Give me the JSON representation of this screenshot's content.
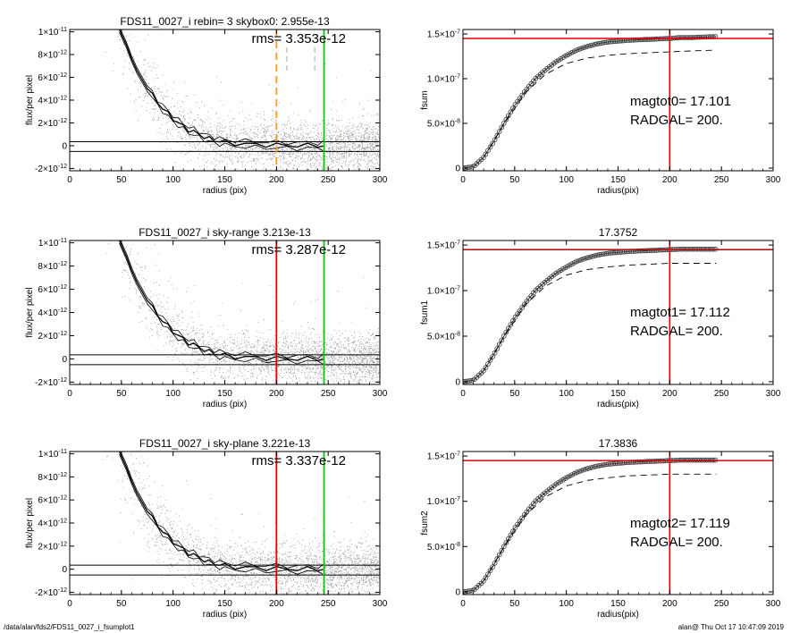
{
  "footer": {
    "path": "/data/alan/fds2/FDS11_0027_i_fsumplot1",
    "stamp": "alan@  Thu Oct 17 10:47:09 2019"
  },
  "colors": {
    "points": "#9a9a9a",
    "profile": "#000000",
    "sky_band": "#000000",
    "marker_orange": "#ff9922",
    "marker_red": "#dd0000",
    "marker_green": "#00cc00",
    "growth_circles": "#333333",
    "guide_red": "#dd0000"
  },
  "chart_data": [
    {
      "type": "scatter",
      "panel": "top-left",
      "title": "FDS11_0027_i rebin= 3    skybox0:  2.955e-13",
      "annotation": "rms= 3.353e-12",
      "xlabel": "radius (pix)",
      "ylabel": "flux/per pixel",
      "xlim": [
        0,
        300
      ],
      "ylim": [
        -2.2e-12,
        1.02e-11
      ],
      "xticks": [
        0,
        50,
        100,
        150,
        200,
        250,
        300
      ],
      "yticks": [
        {
          "v": 1e-11,
          "m": "1×10",
          "e": "-11"
        },
        {
          "v": 8e-12,
          "m": "8×10",
          "e": "-12"
        },
        {
          "v": 6e-12,
          "m": "6×10",
          "e": "-12"
        },
        {
          "v": 4e-12,
          "m": "4×10",
          "e": "-12"
        },
        {
          "v": 2e-12,
          "m": "2×10",
          "e": "-12"
        },
        {
          "v": 0,
          "m": "0",
          "e": ""
        },
        {
          "v": -2e-12,
          "m": "-2×10",
          "e": "-12"
        }
      ],
      "profile": {
        "x": [
          48,
          55,
          60,
          65,
          70,
          75,
          80,
          85,
          90,
          95,
          100,
          105,
          110,
          115,
          120,
          125,
          130,
          135,
          140,
          145,
          150,
          160,
          170,
          180,
          190,
          200,
          210,
          220,
          230,
          240,
          245
        ],
        "y": [
          1.02e-11,
          8.8e-12,
          7.6e-12,
          6.6e-12,
          5.8e-12,
          5e-12,
          4.4e-12,
          3.8e-12,
          3.3e-12,
          2.8e-12,
          2.4e-12,
          2e-12,
          1.7e-12,
          1.4e-12,
          1.2e-12,
          1e-12,
          8e-13,
          6e-13,
          5e-13,
          4e-13,
          3e-13,
          2e-13,
          1.5e-13,
          1e-13,
          8e-14,
          5e-14,
          3e-14,
          2e-14,
          1e-14,
          0,
          0
        ]
      },
      "sky_band": [
        -5e-13,
        3.5e-13
      ],
      "markers": [
        {
          "x": 200,
          "color": "#ff9922",
          "style": "dashed"
        },
        {
          "x": 246,
          "color": "#00cc00",
          "style": "solid"
        }
      ],
      "faint_dashes": [
        210,
        237
      ]
    },
    {
      "type": "line",
      "panel": "top-right",
      "title": "",
      "annotation": "magtot0=  17.101",
      "annotation2": "RADGAL=    200.",
      "xlabel": "radius(pix)",
      "ylabel": "fsum",
      "xlim": [
        0,
        300
      ],
      "ylim": [
        -3e-09,
        1.55e-07
      ],
      "xticks": [
        0,
        50,
        100,
        150,
        200,
        250,
        300
      ],
      "yticks": [
        {
          "v": 1.5e-07,
          "m": "1.5×10",
          "e": "-7"
        },
        {
          "v": 1e-07,
          "m": "1.0×10",
          "e": "-7"
        },
        {
          "v": 5e-08,
          "m": "5.0×10",
          "e": "-8"
        },
        {
          "v": 0,
          "m": "0",
          "e": ""
        }
      ],
      "growth": {
        "x": [
          0,
          10,
          20,
          30,
          40,
          50,
          60,
          70,
          80,
          90,
          100,
          110,
          120,
          130,
          140,
          150,
          160,
          170,
          180,
          190,
          200,
          210,
          220,
          230,
          245
        ],
        "y": [
          0,
          1.5e-09,
          1.2e-08,
          3e-08,
          5.1e-08,
          7e-08,
          8.6e-08,
          1e-07,
          1.1e-07,
          1.19e-07,
          1.26e-07,
          1.32e-07,
          1.36e-07,
          1.39e-07,
          1.41e-07,
          1.42e-07,
          1.43e-07,
          1.435e-07,
          1.44e-07,
          1.445e-07,
          1.45e-07,
          1.46e-07,
          1.46e-07,
          1.465e-07,
          1.47e-07
        ]
      },
      "dashed": {
        "x": [
          20,
          40,
          60,
          80,
          100,
          120,
          140,
          160,
          180,
          200,
          220,
          245
        ],
        "y": [
          1.2e-08,
          5e-08,
          8.4e-08,
          1.05e-07,
          1.17e-07,
          1.23e-07,
          1.26e-07,
          1.28e-07,
          1.29e-07,
          1.3e-07,
          1.31e-07,
          1.32e-07
        ]
      },
      "hline": 1.45e-07,
      "vline": 200
    },
    {
      "type": "scatter",
      "panel": "middle-left",
      "title": "FDS11_0027_i sky-range  3.213e-13",
      "annotation": "rms= 3.287e-12",
      "xlabel": "radius (pix)",
      "ylabel": "flux/per pixel",
      "xlim": [
        0,
        300
      ],
      "ylim": [
        -2.2e-12,
        1.02e-11
      ],
      "xticks": [
        0,
        50,
        100,
        150,
        200,
        250,
        300
      ],
      "yticks": [
        {
          "v": 1e-11,
          "m": "1×10",
          "e": "-11"
        },
        {
          "v": 8e-12,
          "m": "8×10",
          "e": "-12"
        },
        {
          "v": 6e-12,
          "m": "6×10",
          "e": "-12"
        },
        {
          "v": 4e-12,
          "m": "4×10",
          "e": "-12"
        },
        {
          "v": 2e-12,
          "m": "2×10",
          "e": "-12"
        },
        {
          "v": 0,
          "m": "0",
          "e": ""
        },
        {
          "v": -2e-12,
          "m": "-2×10",
          "e": "-12"
        }
      ],
      "profile": {
        "x": [
          48,
          55,
          60,
          65,
          70,
          75,
          80,
          85,
          90,
          95,
          100,
          105,
          110,
          115,
          120,
          125,
          130,
          135,
          140,
          145,
          150,
          160,
          170,
          180,
          190,
          200,
          210,
          220,
          230,
          240,
          245
        ],
        "y": [
          1.02e-11,
          8.8e-12,
          7.6e-12,
          6.6e-12,
          5.8e-12,
          5e-12,
          4.4e-12,
          3.8e-12,
          3.3e-12,
          2.8e-12,
          2.4e-12,
          2e-12,
          1.7e-12,
          1.4e-12,
          1.2e-12,
          1e-12,
          8e-13,
          6e-13,
          5e-13,
          4e-13,
          3e-13,
          2e-13,
          1.5e-13,
          1e-13,
          8e-14,
          5e-14,
          3e-14,
          2e-14,
          1e-14,
          0,
          0
        ]
      },
      "sky_band": [
        -5e-13,
        3.5e-13
      ],
      "markers": [
        {
          "x": 200,
          "color": "#dd0000",
          "style": "solid"
        },
        {
          "x": 246,
          "color": "#00cc00",
          "style": "solid"
        }
      ],
      "faint_dashes": []
    },
    {
      "type": "line",
      "panel": "middle-right",
      "title": "17.3752",
      "annotation": "magtot1=  17.112",
      "annotation2": "RADGAL=    200.",
      "xlabel": "radius(pix)",
      "ylabel": "fsum1",
      "xlim": [
        0,
        300
      ],
      "ylim": [
        -3e-09,
        1.55e-07
      ],
      "xticks": [
        0,
        50,
        100,
        150,
        200,
        250,
        300
      ],
      "yticks": [
        {
          "v": 1.5e-07,
          "m": "1.5×10",
          "e": "-7"
        },
        {
          "v": 1e-07,
          "m": "1.0×10",
          "e": "-7"
        },
        {
          "v": 5e-08,
          "m": "5.0×10",
          "e": "-8"
        },
        {
          "v": 0,
          "m": "0",
          "e": ""
        }
      ],
      "growth": {
        "x": [
          0,
          10,
          20,
          30,
          40,
          50,
          60,
          70,
          80,
          90,
          100,
          110,
          120,
          130,
          140,
          150,
          160,
          170,
          180,
          190,
          200,
          210,
          220,
          230,
          245
        ],
        "y": [
          0,
          1.5e-09,
          1.2e-08,
          3e-08,
          5.1e-08,
          7e-08,
          8.6e-08,
          1e-07,
          1.1e-07,
          1.19e-07,
          1.26e-07,
          1.32e-07,
          1.36e-07,
          1.39e-07,
          1.41e-07,
          1.42e-07,
          1.43e-07,
          1.435e-07,
          1.44e-07,
          1.445e-07,
          1.45e-07,
          1.455e-07,
          1.455e-07,
          1.455e-07,
          1.455e-07
        ]
      },
      "dashed": {
        "x": [
          20,
          40,
          60,
          80,
          100,
          120,
          140,
          160,
          180,
          200,
          220,
          245
        ],
        "y": [
          1.2e-08,
          5e-08,
          8.4e-08,
          1.05e-07,
          1.17e-07,
          1.23e-07,
          1.26e-07,
          1.28e-07,
          1.29e-07,
          1.3e-07,
          1.3e-07,
          1.3e-07
        ]
      },
      "hline": 1.45e-07,
      "vline": 200
    },
    {
      "type": "scatter",
      "panel": "bottom-left",
      "title": "FDS11_0027_i sky-plane  3.221e-13",
      "annotation": "rms= 3.337e-12",
      "xlabel": "radius (pix)",
      "ylabel": "flux/per pixel",
      "xlim": [
        0,
        300
      ],
      "ylim": [
        -2.2e-12,
        1.02e-11
      ],
      "xticks": [
        0,
        50,
        100,
        150,
        200,
        250,
        300
      ],
      "yticks": [
        {
          "v": 1e-11,
          "m": "1×10",
          "e": "-11"
        },
        {
          "v": 8e-12,
          "m": "8×10",
          "e": "-12"
        },
        {
          "v": 6e-12,
          "m": "6×10",
          "e": "-12"
        },
        {
          "v": 4e-12,
          "m": "4×10",
          "e": "-12"
        },
        {
          "v": 2e-12,
          "m": "2×10",
          "e": "-12"
        },
        {
          "v": 0,
          "m": "0",
          "e": ""
        },
        {
          "v": -2e-12,
          "m": "-2×10",
          "e": "-12"
        }
      ],
      "profile": {
        "x": [
          48,
          55,
          60,
          65,
          70,
          75,
          80,
          85,
          90,
          95,
          100,
          105,
          110,
          115,
          120,
          125,
          130,
          135,
          140,
          145,
          150,
          160,
          170,
          180,
          190,
          200,
          210,
          220,
          230,
          240,
          245
        ],
        "y": [
          1.02e-11,
          8.8e-12,
          7.6e-12,
          6.6e-12,
          5.8e-12,
          5e-12,
          4.4e-12,
          3.8e-12,
          3.3e-12,
          2.8e-12,
          2.4e-12,
          2e-12,
          1.7e-12,
          1.4e-12,
          1.2e-12,
          1e-12,
          8e-13,
          6e-13,
          5e-13,
          4e-13,
          3e-13,
          2e-13,
          1.5e-13,
          1e-13,
          8e-14,
          5e-14,
          3e-14,
          2e-14,
          1e-14,
          0,
          0
        ]
      },
      "sky_band": [
        -5e-13,
        3.5e-13
      ],
      "markers": [
        {
          "x": 200,
          "color": "#dd0000",
          "style": "solid"
        },
        {
          "x": 246,
          "color": "#00cc00",
          "style": "solid"
        }
      ],
      "faint_dashes": []
    },
    {
      "type": "line",
      "panel": "bottom-right",
      "title": "17.3836",
      "annotation": "magtot2=  17.119",
      "annotation2": "RADGAL=    200.",
      "xlabel": "radius(pix)",
      "ylabel": "fsum2",
      "xlim": [
        0,
        300
      ],
      "ylim": [
        -3e-09,
        1.55e-07
      ],
      "xticks": [
        0,
        50,
        100,
        150,
        200,
        250,
        300
      ],
      "yticks": [
        {
          "v": 1.5e-07,
          "m": "1.5×10",
          "e": "-7"
        },
        {
          "v": 1e-07,
          "m": "1.0×10",
          "e": "-7"
        },
        {
          "v": 5e-08,
          "m": "5.0×10",
          "e": "-8"
        },
        {
          "v": 0,
          "m": "0",
          "e": ""
        }
      ],
      "growth": {
        "x": [
          0,
          10,
          20,
          30,
          40,
          50,
          60,
          70,
          80,
          90,
          100,
          110,
          120,
          130,
          140,
          150,
          160,
          170,
          180,
          190,
          200,
          210,
          220,
          230,
          245
        ],
        "y": [
          0,
          1.5e-09,
          1.2e-08,
          3e-08,
          5.1e-08,
          7e-08,
          8.6e-08,
          1e-07,
          1.1e-07,
          1.19e-07,
          1.26e-07,
          1.32e-07,
          1.36e-07,
          1.39e-07,
          1.41e-07,
          1.42e-07,
          1.43e-07,
          1.435e-07,
          1.44e-07,
          1.445e-07,
          1.45e-07,
          1.455e-07,
          1.455e-07,
          1.455e-07,
          1.455e-07
        ]
      },
      "dashed": {
        "x": [
          20,
          40,
          60,
          80,
          100,
          120,
          140,
          160,
          180,
          200,
          220,
          245
        ],
        "y": [
          1.2e-08,
          5e-08,
          8.4e-08,
          1.05e-07,
          1.17e-07,
          1.23e-07,
          1.26e-07,
          1.28e-07,
          1.29e-07,
          1.3e-07,
          1.3e-07,
          1.3e-07
        ]
      },
      "hline": 1.45e-07,
      "vline": 200
    }
  ]
}
